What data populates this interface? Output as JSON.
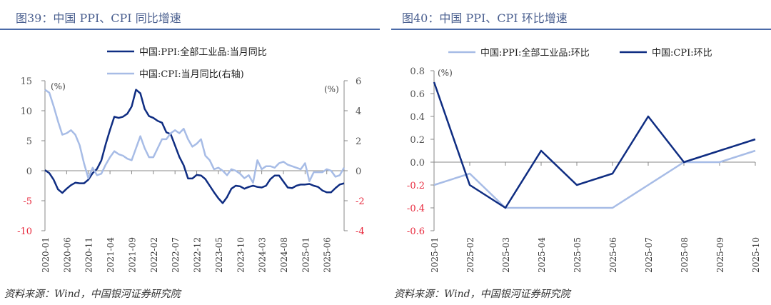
{
  "colors": {
    "dark": "#0f2d82",
    "light": "#a7bce6",
    "axis": "#888888",
    "neg": "#e8283c",
    "tick": "#555555"
  },
  "chart_data": [
    {
      "type": "line",
      "title": "图39：中国 PPI、CPI 同比增速",
      "source": "资料来源：Wind，中国银河证券研究院",
      "unit_left": "(%)",
      "unit_right": "(%)",
      "ylim": [
        -10,
        15
      ],
      "ylim_right": [
        -4,
        6
      ],
      "yticks": [
        15,
        10,
        5,
        0,
        -5,
        -10
      ],
      "yticks_right": [
        6,
        4,
        2,
        0,
        -2,
        -4
      ],
      "start": "2020-01",
      "n": 70,
      "xticklabels": [
        "2020-01",
        "2020-06",
        "2020-11",
        "2021-04",
        "2021-09",
        "2022-02",
        "2022-07",
        "2022-12",
        "2023-05",
        "2023-10",
        "2024-03",
        "2024-08",
        "2025-01",
        "2025-06"
      ],
      "series": [
        {
          "name": "中国:PPI:全部工业品:当月同比",
          "axis": "left",
          "color": "dark",
          "values": [
            0.1,
            -0.4,
            -1.5,
            -3.1,
            -3.7,
            -3.0,
            -2.4,
            -2.0,
            -2.1,
            -2.1,
            -1.5,
            -0.4,
            0.3,
            1.7,
            4.4,
            6.8,
            9.0,
            8.8,
            9.0,
            9.5,
            10.7,
            13.5,
            12.9,
            10.3,
            9.1,
            8.8,
            8.3,
            8.0,
            6.4,
            6.1,
            4.2,
            2.3,
            0.9,
            -1.3,
            -1.3,
            -0.7,
            -0.8,
            -1.4,
            -2.5,
            -3.6,
            -4.6,
            -5.4,
            -4.4,
            -3.0,
            -2.5,
            -2.6,
            -3.0,
            -2.7,
            -2.5,
            -2.7,
            -2.8,
            -2.5,
            -1.4,
            -0.8,
            -0.8,
            -1.8,
            -2.8,
            -2.9,
            -2.5,
            -2.3,
            -2.3,
            -2.2,
            -2.5,
            -2.7,
            -3.3,
            -3.6,
            -3.6,
            -2.9,
            -2.3,
            -2.1
          ]
        },
        {
          "name": "中国:CPI:当月同比(右轴)",
          "axis": "right",
          "color": "light",
          "values": [
            5.4,
            5.2,
            4.3,
            3.3,
            2.4,
            2.5,
            2.7,
            2.4,
            1.7,
            0.5,
            -0.5,
            0.2,
            -0.3,
            -0.2,
            0.4,
            0.9,
            1.3,
            1.1,
            1.0,
            0.8,
            0.7,
            1.5,
            2.3,
            1.5,
            0.9,
            0.9,
            1.5,
            2.1,
            2.1,
            2.5,
            2.7,
            2.5,
            2.8,
            2.1,
            1.6,
            1.8,
            2.1,
            1.0,
            0.7,
            0.1,
            0.2,
            0.0,
            -0.3,
            0.1,
            0.0,
            -0.2,
            -0.5,
            -0.3,
            -0.8,
            0.7,
            0.1,
            0.3,
            0.3,
            0.2,
            0.5,
            0.6,
            0.4,
            0.3,
            0.2,
            0.1,
            0.5,
            -0.7,
            -0.1,
            -0.1,
            -0.1,
            0.1,
            0.0,
            -0.4,
            -0.3,
            0.2
          ]
        }
      ]
    },
    {
      "type": "line",
      "title": "图40：中国 PPI、CPI 环比增速",
      "source": "资料来源：Wind，中国银河证券研究院",
      "unit_left": "(%)",
      "ylim": [
        -0.6,
        0.8
      ],
      "yticks": [
        "0.8",
        "0.6",
        "0.4",
        "0.2",
        "0.0",
        "-0.2",
        "-0.4",
        "-0.6"
      ],
      "categories": [
        "2025-01",
        "2025-02",
        "2025-03",
        "2025-04",
        "2025-05",
        "2025-06",
        "2025-07",
        "2025-08",
        "2025-09",
        "2025-10"
      ],
      "series": [
        {
          "name": "中国:PPI:全部工业品:环比",
          "color": "light",
          "values": [
            -0.2,
            -0.1,
            -0.4,
            -0.4,
            -0.4,
            -0.4,
            -0.2,
            0.0,
            0.0,
            0.1
          ]
        },
        {
          "name": "中国:CPI:环比",
          "color": "dark",
          "values": [
            0.7,
            -0.2,
            -0.4,
            0.1,
            -0.2,
            -0.1,
            0.4,
            0.0,
            0.1,
            0.2
          ]
        }
      ]
    }
  ]
}
